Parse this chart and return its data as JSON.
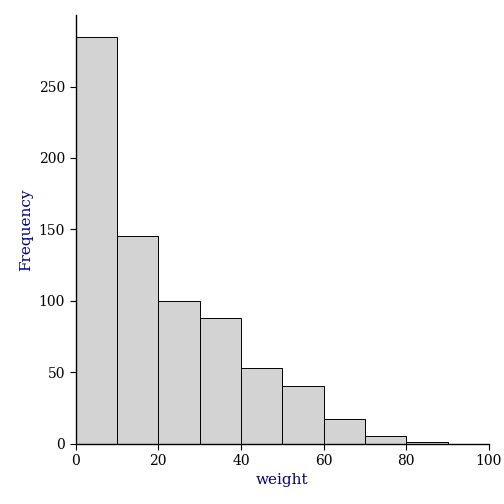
{
  "bin_edges": [
    0,
    10,
    20,
    30,
    40,
    50,
    60,
    70,
    80,
    90,
    100
  ],
  "frequencies": [
    285,
    145,
    100,
    88,
    53,
    40,
    17,
    5,
    1,
    0
  ],
  "bar_color": "#d3d3d3",
  "bar_edgecolor": "#000000",
  "xlabel": "weight",
  "ylabel": "Frequency",
  "xlabel_color": "#000080",
  "ylabel_color": "#000080",
  "tick_color": "#000080",
  "tick_label_color": "#000000",
  "xlim": [
    0,
    100
  ],
  "ylim": [
    0,
    300
  ],
  "xticks": [
    0,
    20,
    40,
    60,
    80,
    100
  ],
  "yticks": [
    0,
    50,
    100,
    150,
    200,
    250
  ],
  "background_color": "#ffffff",
  "xlabel_fontsize": 11,
  "ylabel_fontsize": 11,
  "tick_fontsize": 10,
  "bar_linewidth": 0.7
}
